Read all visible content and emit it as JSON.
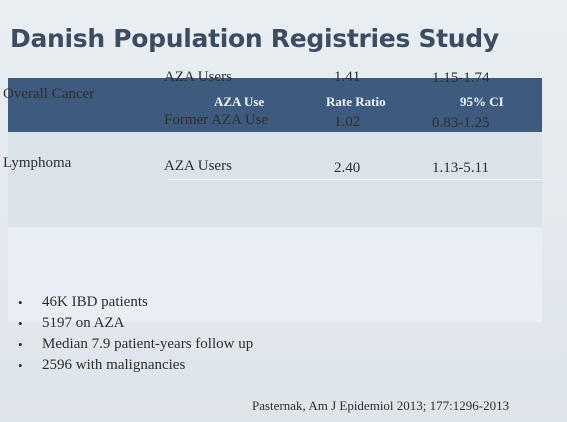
{
  "slide": {
    "title": "Danish Population Registries Study"
  },
  "table": {
    "headers": {
      "group": "",
      "aza_use": "AZA Use",
      "rate_ratio": "Rate Ratio",
      "ci": "95% CI"
    },
    "groups": [
      {
        "label": "Overall Cancer",
        "rows": [
          {
            "aza_use": "AZA Users",
            "rate_ratio": "1.41",
            "ci": "1.15-1.74"
          },
          {
            "aza_use": "Former AZA Use",
            "rate_ratio": "1.02",
            "ci": "0.83-1.25"
          }
        ]
      },
      {
        "label": "Lymphoma",
        "rows": [
          {
            "aza_use": "AZA Users",
            "rate_ratio": "2.40",
            "ci": "1.13-5.11"
          }
        ]
      }
    ]
  },
  "bullets": [
    "46K IBD patients",
    "5197 on AZA",
    "Median 7.9 patient-years follow up",
    "2596 with malignancies"
  ],
  "bullet_glyph": "•",
  "citation": "Pasternak, Am J Epidemiol 2013; 177:1296-2013"
}
